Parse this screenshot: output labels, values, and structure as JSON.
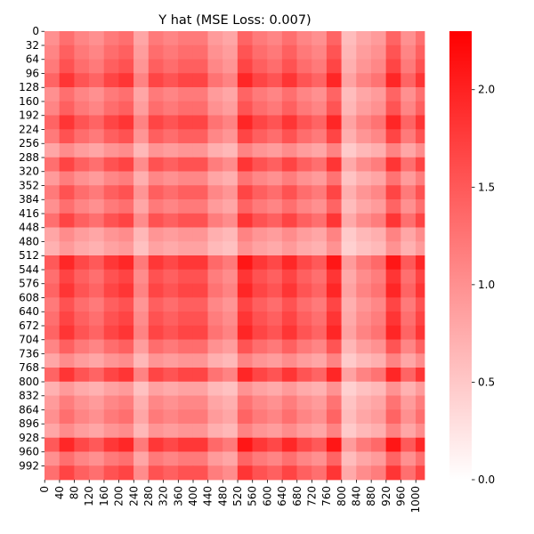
{
  "chart_data": {
    "type": "heatmap",
    "title": "Y hat (MSE Loss: 0.007)",
    "xlabel": "",
    "ylabel": "",
    "n_rows": 1024,
    "n_cols": 1024,
    "y_tick_labels": [
      "0",
      "32",
      "64",
      "96",
      "128",
      "160",
      "192",
      "224",
      "256",
      "288",
      "320",
      "352",
      "384",
      "416",
      "448",
      "480",
      "512",
      "544",
      "576",
      "608",
      "640",
      "672",
      "704",
      "736",
      "768",
      "800",
      "832",
      "864",
      "896",
      "928",
      "960",
      "992"
    ],
    "x_tick_labels": [
      "0",
      "40",
      "80",
      "120",
      "160",
      "200",
      "240",
      "280",
      "320",
      "360",
      "400",
      "440",
      "480",
      "520",
      "560",
      "600",
      "640",
      "680",
      "720",
      "760",
      "800",
      "840",
      "880",
      "920",
      "960",
      "1000"
    ],
    "colorbar": {
      "min": 0.0,
      "max": 2.3,
      "ticks": [
        0.0,
        0.5,
        1.0,
        1.5,
        2.0
      ],
      "tick_labels": [
        "0.0",
        "0.5",
        "1.0",
        "1.5",
        "2.0"
      ],
      "color_low": "#ffffff",
      "color_high": "#ff0000"
    },
    "row_profile": [
      {
        "index": 0,
        "value": 1.0
      },
      {
        "index": 32,
        "value": 1.1
      },
      {
        "index": 64,
        "value": 1.2
      },
      {
        "index": 96,
        "value": 1.4
      },
      {
        "index": 128,
        "value": 1.0
      },
      {
        "index": 160,
        "value": 1.1
      },
      {
        "index": 192,
        "value": 1.4
      },
      {
        "index": 224,
        "value": 1.2
      },
      {
        "index": 256,
        "value": 0.8
      },
      {
        "index": 288,
        "value": 1.3
      },
      {
        "index": 320,
        "value": 0.9
      },
      {
        "index": 352,
        "value": 1.2
      },
      {
        "index": 384,
        "value": 1.0
      },
      {
        "index": 416,
        "value": 1.3
      },
      {
        "index": 448,
        "value": 0.8
      },
      {
        "index": 480,
        "value": 0.7
      },
      {
        "index": 512,
        "value": 1.5
      },
      {
        "index": 544,
        "value": 1.3
      },
      {
        "index": 576,
        "value": 1.4
      },
      {
        "index": 608,
        "value": 1.2
      },
      {
        "index": 640,
        "value": 1.3
      },
      {
        "index": 672,
        "value": 1.4
      },
      {
        "index": 704,
        "value": 1.1
      },
      {
        "index": 736,
        "value": 0.8
      },
      {
        "index": 768,
        "value": 1.4
      },
      {
        "index": 800,
        "value": 0.7
      },
      {
        "index": 832,
        "value": 0.9
      },
      {
        "index": 864,
        "value": 1.0
      },
      {
        "index": 896,
        "value": 0.8
      },
      {
        "index": 928,
        "value": 1.5
      },
      {
        "index": 960,
        "value": 1.0
      },
      {
        "index": 992,
        "value": 1.3
      }
    ],
    "col_profile": [
      {
        "index": 0,
        "value": 1.0
      },
      {
        "index": 40,
        "value": 1.3
      },
      {
        "index": 80,
        "value": 1.1
      },
      {
        "index": 120,
        "value": 1.0
      },
      {
        "index": 160,
        "value": 1.2
      },
      {
        "index": 200,
        "value": 1.3
      },
      {
        "index": 240,
        "value": 0.8
      },
      {
        "index": 280,
        "value": 1.2
      },
      {
        "index": 320,
        "value": 1.1
      },
      {
        "index": 360,
        "value": 1.2
      },
      {
        "index": 400,
        "value": 1.2
      },
      {
        "index": 440,
        "value": 0.9
      },
      {
        "index": 480,
        "value": 0.8
      },
      {
        "index": 520,
        "value": 1.4
      },
      {
        "index": 560,
        "value": 1.2
      },
      {
        "index": 600,
        "value": 1.1
      },
      {
        "index": 640,
        "value": 1.3
      },
      {
        "index": 680,
        "value": 1.1
      },
      {
        "index": 720,
        "value": 1.0
      },
      {
        "index": 760,
        "value": 1.4
      },
      {
        "index": 800,
        "value": 0.6
      },
      {
        "index": 840,
        "value": 0.8
      },
      {
        "index": 880,
        "value": 0.9
      },
      {
        "index": 920,
        "value": 1.4
      },
      {
        "index": 960,
        "value": 1.0
      },
      {
        "index": 1000,
        "value": 1.3
      }
    ]
  }
}
